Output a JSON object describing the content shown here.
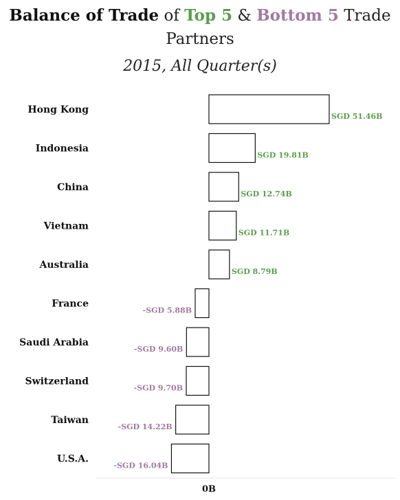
{
  "title": {
    "part1": "Balance of Trade",
    "part2": " of ",
    "part3": "Top 5",
    "part4": " & ",
    "part5": "Bottom 5",
    "part6": " Trade Partners"
  },
  "subtitle": "2015, All Quarter(s)",
  "colors": {
    "positive": "#5a9e4b",
    "negative": "#a07aa0",
    "bar_stroke": "#111111",
    "bar_fill": "#ffffff"
  },
  "chart_data": {
    "type": "bar",
    "orientation": "horizontal",
    "categories": [
      "Hong Kong",
      "Indonesia",
      "China",
      "Vietnam",
      "Australia",
      "France",
      "Saudi Arabia",
      "Switzerland",
      "Taiwan",
      "U.S.A."
    ],
    "values": [
      51.46,
      19.81,
      12.74,
      11.71,
      8.79,
      -5.88,
      -9.6,
      -9.7,
      -14.22,
      -16.04
    ],
    "value_labels": [
      "SGD 51.46B",
      "SGD 19.81B",
      "SGD 12.74B",
      "SGD 11.71B",
      "SGD 8.79B",
      "-SGD 5.88B",
      "-SGD 9.60B",
      "-SGD 9.70B",
      "-SGD 14.22B",
      "-SGD 16.04B"
    ],
    "x_tick_labels": [
      "0B"
    ],
    "unit": "SGD billions",
    "grid": false,
    "legend": "none"
  }
}
